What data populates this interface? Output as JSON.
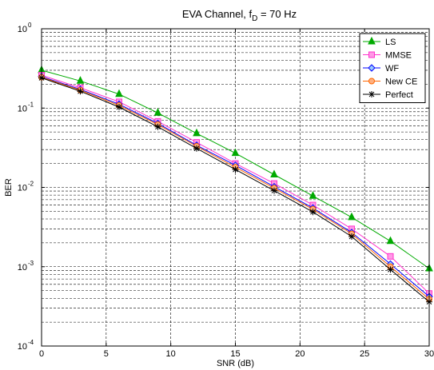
{
  "chart_data": {
    "type": "line",
    "title": "EVA Channel, f",
    "title_subscript": "D",
    "title_suffix": " = 70 Hz",
    "xlabel": "SNR (dB)",
    "ylabel": "BER",
    "xlim": [
      0,
      30
    ],
    "ylim": [
      0.0001,
      1
    ],
    "yscale": "log",
    "grid": true,
    "legend_position": "top-right",
    "x_ticks": [
      0,
      5,
      10,
      15,
      20,
      25,
      30
    ],
    "y_ticks": [
      {
        "base": "10",
        "exp": "-4"
      },
      {
        "base": "10",
        "exp": "-3"
      },
      {
        "base": "10",
        "exp": "-2"
      },
      {
        "base": "10",
        "exp": "-1"
      },
      {
        "base": "10",
        "exp": "0"
      }
    ],
    "x": [
      0,
      3,
      6,
      9,
      12,
      15,
      18,
      21,
      24,
      27,
      30
    ],
    "series": [
      {
        "name": "LS",
        "color": "#00aa00",
        "marker": "triangle",
        "values": [
          0.3,
          0.22,
          0.15,
          0.087,
          0.048,
          0.027,
          0.0145,
          0.0078,
          0.0042,
          0.0021,
          0.00095
        ]
      },
      {
        "name": "MMSE",
        "color": "#ff33cc",
        "marker": "square",
        "values": [
          0.26,
          0.18,
          0.12,
          0.068,
          0.037,
          0.02,
          0.0112,
          0.006,
          0.003,
          0.00135,
          0.00046
        ]
      },
      {
        "name": "WF",
        "color": "#0000ff",
        "marker": "diamond",
        "values": [
          0.25,
          0.172,
          0.112,
          0.064,
          0.034,
          0.019,
          0.0102,
          0.0055,
          0.0027,
          0.00108,
          0.00042
        ]
      },
      {
        "name": "New CE",
        "color": "#ff6600",
        "marker": "circle",
        "values": [
          0.245,
          0.168,
          0.108,
          0.062,
          0.033,
          0.018,
          0.0098,
          0.0053,
          0.0026,
          0.001,
          0.00039
        ]
      },
      {
        "name": "Perfect",
        "color": "#000000",
        "marker": "star",
        "values": [
          0.24,
          0.163,
          0.103,
          0.058,
          0.031,
          0.0168,
          0.0091,
          0.0049,
          0.0024,
          0.00092,
          0.00036
        ]
      }
    ]
  }
}
